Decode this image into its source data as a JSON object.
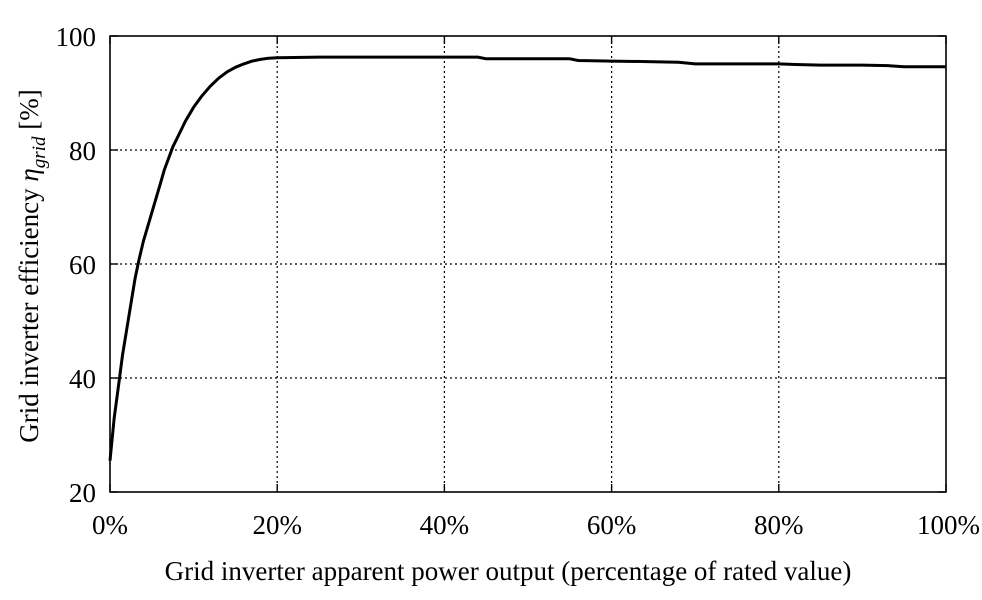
{
  "chart_data": {
    "type": "line",
    "xlabel": "Grid inverter apparent power output (percentage of rated value)",
    "ylabel": {
      "prefix": "Grid inverter efficiency ",
      "symbol": "η",
      "subscript": "grid",
      "suffix": " [%]"
    },
    "xlim": [
      0,
      100
    ],
    "ylim": [
      20,
      100
    ],
    "x_ticks": [
      0,
      20,
      40,
      60,
      80,
      100
    ],
    "x_tick_labels": [
      "0%",
      "20%",
      "40%",
      "60%",
      "80%",
      "100%"
    ],
    "y_ticks": [
      20,
      40,
      60,
      80,
      100
    ],
    "y_tick_labels": [
      "20",
      "40",
      "60",
      "80",
      "100"
    ],
    "grid": true,
    "legend": "none",
    "series": [
      {
        "x": [
          0,
          0.5,
          1,
          1.5,
          2,
          2.5,
          3,
          3.5,
          4,
          4.5,
          5,
          5.5,
          6,
          6.5,
          7,
          7.5,
          8,
          8.5,
          9,
          10,
          11,
          12,
          13,
          14,
          15,
          16,
          17,
          18,
          19,
          20,
          25,
          30,
          35,
          40,
          44,
          45,
          50,
          55,
          56,
          60,
          65,
          68,
          70,
          75,
          80,
          82,
          85,
          90,
          93,
          95,
          100
        ],
        "y": [
          25.5,
          33,
          38.5,
          44,
          48.5,
          53,
          57.5,
          61,
          64,
          66.5,
          69,
          71.5,
          74,
          76.5,
          78.5,
          80.5,
          82,
          83.5,
          85,
          87.5,
          89.5,
          91.2,
          92.6,
          93.7,
          94.5,
          95.1,
          95.6,
          95.9,
          96.1,
          96.2,
          96.3,
          96.3,
          96.3,
          96.3,
          96.3,
          96.0,
          96.0,
          96.0,
          95.7,
          95.6,
          95.5,
          95.4,
          95.1,
          95.1,
          95.1,
          95.0,
          94.9,
          94.9,
          94.8,
          94.6,
          94.6
        ]
      }
    ]
  }
}
